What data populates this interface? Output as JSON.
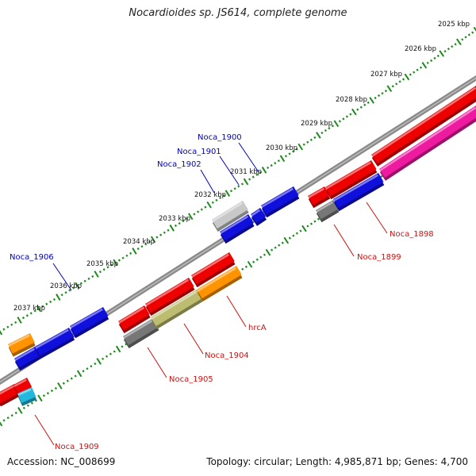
{
  "title": "Nocardioides sp. JS614, complete genome",
  "footer": {
    "accession_label": "Accession:",
    "accession": "NC_008699",
    "topology_label": "Topology:",
    "topology": "circular",
    "length_label": "Length:",
    "length": "4,985,871 bp",
    "genes_label": "Genes:",
    "genes": "4,700"
  },
  "scale_labels": [
    "2025 kbp",
    "2026 kbp",
    "2027 kbp",
    "2028 kbp",
    "2029 kbp",
    "2030 kbp",
    "2031 kbp",
    "2032 kbp",
    "2033 kbp",
    "2034 kbp",
    "2035 kbp",
    "2036 kbp",
    "2037 kbp"
  ],
  "colors": {
    "backbone": "#8a8a8a",
    "tick": "#1e8a1e",
    "forward_label": "#0000c0",
    "reverse_label": "#d01010",
    "red": "#ee0000",
    "blue": "#1010dd",
    "magenta": "#ee1aa0",
    "grey": "#777777",
    "lightgrey": "#c8c8c8",
    "orange": "#ff9400",
    "olive": "#bdbd72",
    "cyan": "#22b8dd"
  },
  "gene_labels": {
    "forward": [
      "Noca_1900",
      "Noca_1901",
      "Noca_1902",
      "Noca_1906"
    ],
    "reverse": [
      "Noca_1898",
      "Noca_1899",
      "hrcA",
      "Noca_1904",
      "Noca_1905",
      "Noca_1909"
    ]
  }
}
